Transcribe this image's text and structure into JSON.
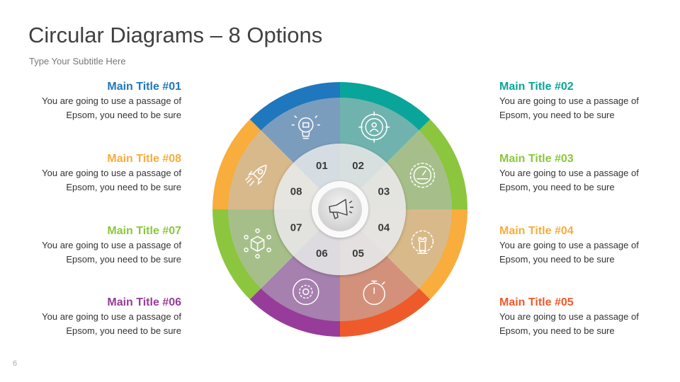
{
  "header": {
    "title": "Circular Diagrams – 8 Options",
    "subtitle": "Type Your Subtitle Here"
  },
  "page_number": "6",
  "center_icon": "megaphone-icon",
  "options": [
    {
      "num": "01",
      "title": "Main Title #01",
      "line1": "You are going to use a passage of",
      "line2": "Epsom, you need to be sure",
      "color": "#1f77be",
      "muted": "#7b9dbd",
      "icon": "lightbulb-puzzle-icon"
    },
    {
      "num": "02",
      "title": "Main Title #02",
      "line1": "You are going to use a passage of",
      "line2": "Epsom, you need to be sure",
      "color": "#0aa59a",
      "muted": "#70b3ae",
      "icon": "target-team-icon"
    },
    {
      "num": "03",
      "title": "Main Title #03",
      "line1": "You are going to use a passage of",
      "line2": "Epsom, you need to be sure",
      "color": "#8cc63f",
      "muted": "#a6bf8a",
      "icon": "gauge-gear-icon"
    },
    {
      "num": "04",
      "title": "Main Title #04",
      "line1": "You are going to use a passage of",
      "line2": "Epsom, you need to be sure",
      "color": "#f8ad3c",
      "muted": "#d8b98a",
      "icon": "chess-gear-icon"
    },
    {
      "num": "05",
      "title": "Main Title #05",
      "line1": "You are going to use a passage of",
      "line2": "Epsom, you need to be sure",
      "color": "#ef5a2a",
      "muted": "#d3917b",
      "icon": "stopwatch-icon"
    },
    {
      "num": "06",
      "title": "Main Title #06",
      "line1": "You are going to use a passage of",
      "line2": "Epsom, you need to be sure",
      "color": "#973c9b",
      "muted": "#a680ae",
      "icon": "gear-cycle-icon"
    },
    {
      "num": "07",
      "title": "Main Title #07",
      "line1": "You are going to use a passage of",
      "line2": "Epsom, you need to be sure",
      "color": "#8cc63f",
      "muted": "#a6bf8a",
      "icon": "box-network-icon"
    },
    {
      "num": "08",
      "title": "Main Title #08",
      "line1": "You are going to use a passage of",
      "line2": "Epsom, you need to be sure",
      "color": "#f8ad3c",
      "muted": "#d8b98c",
      "icon": "rocket-icon"
    }
  ]
}
